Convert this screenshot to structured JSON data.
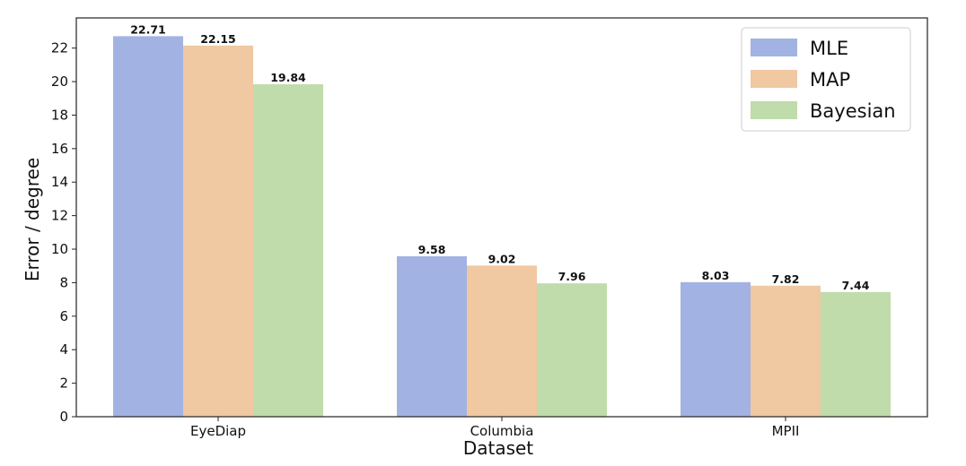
{
  "chart_data": {
    "type": "bar",
    "categories": [
      "EyeDiap",
      "Columbia",
      "MPII"
    ],
    "series": [
      {
        "name": "MLE",
        "values": [
          22.71,
          9.58,
          8.03
        ],
        "color": "#a2b3e3"
      },
      {
        "name": "MAP",
        "values": [
          22.15,
          9.02,
          7.82
        ],
        "color": "#f0c8a2"
      },
      {
        "name": "Bayesian",
        "values": [
          19.84,
          7.96,
          7.44
        ],
        "color": "#c0dcaa"
      }
    ],
    "data_labels": [
      [
        "22.71",
        "22.15",
        "19.84"
      ],
      [
        "9.58",
        "9.02",
        "7.96"
      ],
      [
        "8.03",
        "7.82",
        "7.44"
      ]
    ],
    "yticks": [
      "0",
      "2",
      "4",
      "6",
      "8",
      "10",
      "12",
      "14",
      "16",
      "18",
      "20",
      "22"
    ],
    "xlabel": "Dataset",
    "ylabel": "Error / degree",
    "ylim": [
      0,
      23.8
    ],
    "grid": false,
    "legend_position": "top-right"
  }
}
